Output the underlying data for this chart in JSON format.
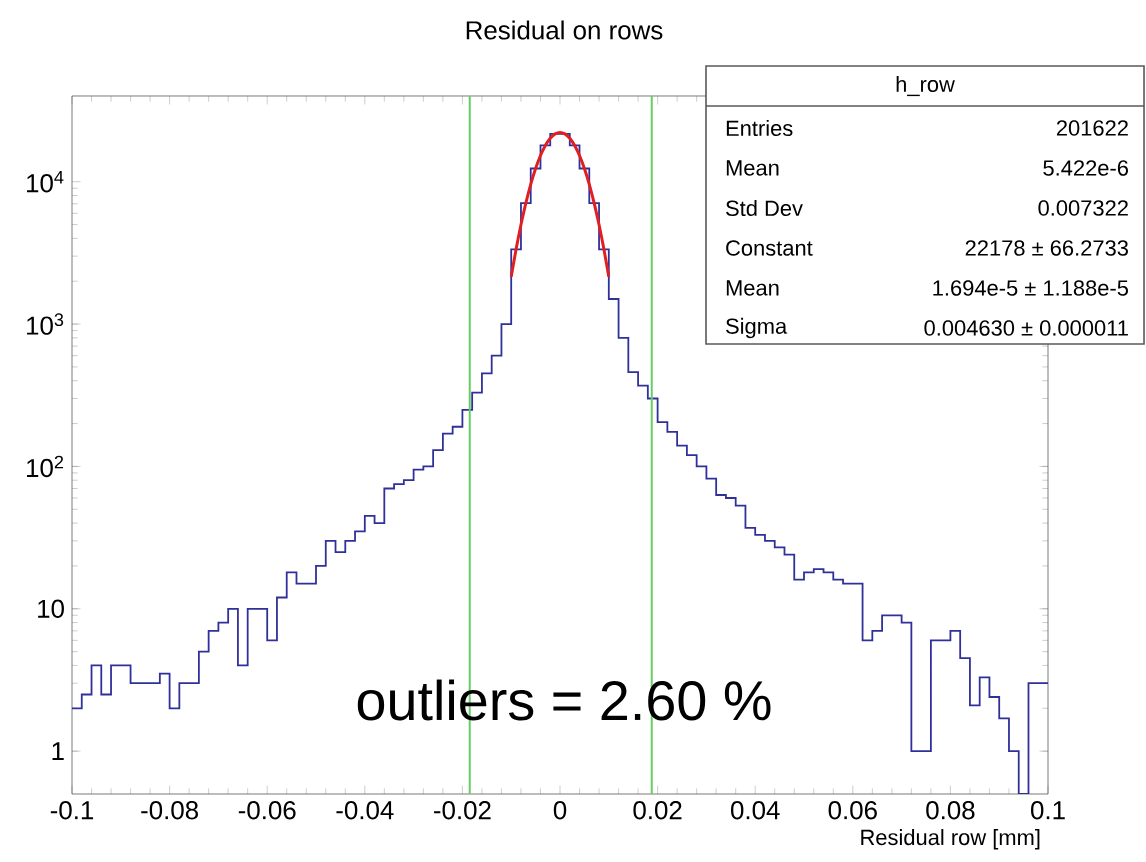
{
  "chart_data": {
    "type": "histogram",
    "title": "Residual on rows",
    "xlabel": "Residual row [mm]",
    "log": "y",
    "grid": false,
    "xlim": [
      -0.1,
      0.1
    ],
    "xticks": [
      -0.1,
      -0.08,
      -0.06,
      -0.04,
      -0.02,
      0,
      0.02,
      0.04,
      0.06,
      0.08,
      0.1
    ],
    "ylim": [
      0.5,
      40000
    ],
    "yticks": [
      {
        "value": 1,
        "label": "1"
      },
      {
        "value": 10,
        "label": "10"
      },
      {
        "value": 100,
        "label": "10$^{2}$"
      },
      {
        "value": 1000,
        "label": "10$^{3}$"
      },
      {
        "value": 10000,
        "label": "10$^{4}$"
      }
    ],
    "series": [
      {
        "type": "histogram",
        "color": "#30309a",
        "bins": [
          -0.1,
          -0.098,
          -0.096,
          -0.094,
          -0.092,
          -0.09,
          -0.088,
          -0.086,
          -0.084,
          -0.082,
          -0.08,
          -0.078,
          -0.076,
          -0.074,
          -0.072,
          -0.07,
          -0.068,
          -0.066,
          -0.064,
          -0.062,
          -0.06,
          -0.058,
          -0.056,
          -0.054,
          -0.052,
          -0.05,
          -0.048,
          -0.046,
          -0.044,
          -0.042,
          -0.04,
          -0.038,
          -0.036,
          -0.034,
          -0.032,
          -0.03,
          -0.028,
          -0.026,
          -0.024,
          -0.022,
          -0.02,
          -0.018,
          -0.016,
          -0.014,
          -0.012,
          -0.01,
          -0.008,
          -0.006,
          -0.004,
          -0.002,
          0,
          0.002,
          0.004,
          0.006,
          0.008,
          0.01,
          0.012,
          0.014,
          0.016,
          0.018,
          0.02,
          0.022,
          0.024,
          0.026,
          0.028,
          0.03,
          0.032,
          0.034,
          0.036,
          0.038,
          0.04,
          0.042,
          0.044,
          0.046,
          0.048,
          0.05,
          0.052,
          0.054,
          0.056,
          0.058,
          0.06,
          0.062,
          0.064,
          0.066,
          0.068,
          0.07,
          0.072,
          0.074,
          0.076,
          0.078,
          0.08,
          0.082,
          0.084,
          0.086,
          0.088,
          0.09,
          0.092,
          0.094,
          0.096,
          0.098,
          0.1
        ],
        "values": [
          2,
          2.5,
          4,
          2.5,
          4,
          4,
          3,
          3,
          3,
          3.5,
          2,
          3,
          3,
          5,
          7,
          8,
          10,
          4,
          10,
          10,
          6,
          12,
          18,
          15,
          15,
          20,
          30,
          25,
          30,
          35,
          45,
          40,
          70,
          75,
          80,
          95,
          100,
          130,
          170,
          190,
          250,
          330,
          450,
          600,
          1000,
          3350,
          7070,
          12380,
          17980,
          21670,
          21670,
          17980,
          12380,
          7070,
          3350,
          1500,
          800,
          460,
          370,
          300,
          205,
          175,
          140,
          120,
          100,
          82,
          63,
          60,
          53,
          37,
          33,
          30,
          27,
          24,
          16,
          18,
          19,
          18,
          16,
          15,
          15,
          6,
          7,
          9,
          9,
          8,
          1,
          1,
          6,
          6,
          7,
          4.5,
          2.1,
          3.3,
          2.4,
          1.7,
          1,
          null,
          3,
          3
        ]
      },
      {
        "type": "line",
        "color": "#e02020",
        "line_style": "solid",
        "x": [
          -0.01,
          -0.009,
          -0.008,
          -0.007,
          -0.006,
          -0.005,
          -0.004,
          -0.003,
          -0.002,
          -0.001,
          0,
          0.001,
          0.002,
          0.003,
          0.004,
          0.005,
          0.006,
          0.007,
          0.008,
          0.009,
          0.01
        ],
        "values": [
          2150,
          3350,
          4980,
          7070,
          9580,
          12380,
          15270,
          17980,
          20200,
          21670,
          22178,
          21670,
          20200,
          17980,
          15270,
          12380,
          9580,
          7070,
          4980,
          3350,
          2150
        ]
      }
    ],
    "ref_lines": [
      {
        "axis": "x",
        "value": -0.0185,
        "color": "#66cc66"
      },
      {
        "axis": "x",
        "value": 0.0188,
        "color": "#66cc66"
      }
    ],
    "annotations": [
      "h_row",
      "Entries",
      "201622",
      "Mean",
      "5.422e-6",
      "Std Dev",
      "0.007322",
      "Constant",
      "22178 ± 66.2733",
      "Mean",
      "1.694e-5 ± 1.188e-5",
      "Sigma",
      "0.004630 ± 0.000011",
      "outliers = 2.60 %"
    ]
  }
}
